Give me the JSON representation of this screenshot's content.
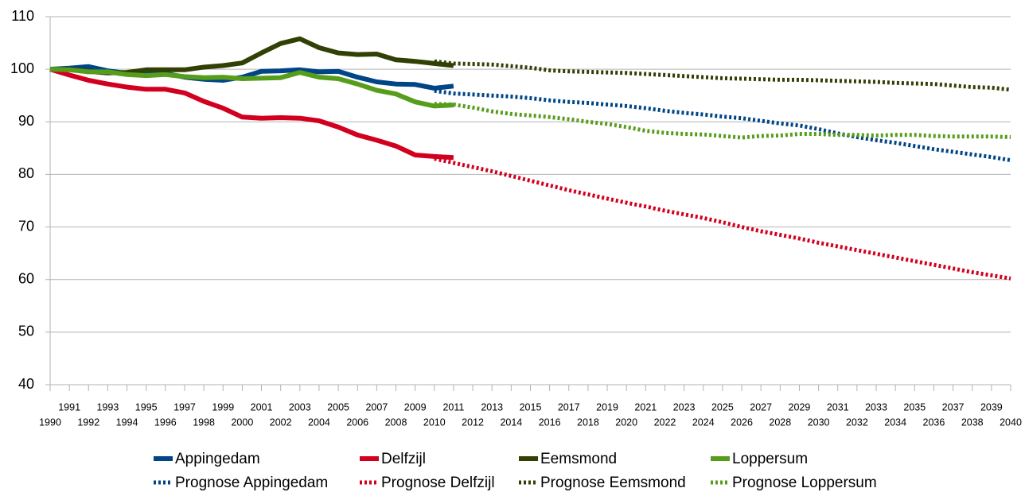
{
  "chart_data": {
    "type": "line",
    "x": [
      1990,
      1991,
      1992,
      1993,
      1994,
      1995,
      1996,
      1997,
      1998,
      1999,
      2000,
      2001,
      2002,
      2003,
      2004,
      2005,
      2006,
      2007,
      2008,
      2009,
      2010,
      2011,
      2012,
      2013,
      2014,
      2015,
      2016,
      2017,
      2018,
      2019,
      2020,
      2021,
      2022,
      2023,
      2024,
      2025,
      2026,
      2027,
      2028,
      2029,
      2030,
      2031,
      2032,
      2033,
      2034,
      2035,
      2036,
      2037,
      2038,
      2039,
      2040
    ],
    "xlim": [
      1990,
      2040
    ],
    "xticks": [
      1990,
      1991,
      1992,
      1993,
      1994,
      1995,
      1996,
      1997,
      1998,
      1999,
      2000,
      2001,
      2002,
      2003,
      2004,
      2005,
      2006,
      2007,
      2008,
      2009,
      2010,
      2011,
      2012,
      2013,
      2014,
      2015,
      2016,
      2017,
      2018,
      2019,
      2020,
      2021,
      2022,
      2023,
      2024,
      2025,
      2026,
      2027,
      2028,
      2029,
      2030,
      2031,
      2032,
      2033,
      2034,
      2035,
      2036,
      2037,
      2038,
      2039,
      2040
    ],
    "ylim": [
      40,
      110
    ],
    "yticks": [
      40,
      50,
      60,
      70,
      80,
      90,
      100,
      110
    ],
    "grid": true,
    "series": [
      {
        "name": "Appingedam",
        "color": "#004586",
        "dashed": false,
        "values": [
          100,
          100.2,
          100.5,
          99.7,
          99.2,
          99.0,
          99.2,
          98.5,
          98.1,
          97.9,
          98.5,
          99.6,
          99.7,
          99.9,
          99.5,
          99.6,
          98.5,
          97.6,
          97.2,
          97.1,
          96.4,
          96.8,
          null,
          null,
          null,
          null,
          null,
          null,
          null,
          null,
          null,
          null,
          null,
          null,
          null,
          null,
          null,
          null,
          null,
          null,
          null,
          null,
          null,
          null,
          null,
          null,
          null,
          null,
          null,
          null,
          null
        ]
      },
      {
        "name": "Delfzijl",
        "color": "#d2001e",
        "dashed": false,
        "values": [
          100,
          98.9,
          97.9,
          97.2,
          96.6,
          96.2,
          96.2,
          95.5,
          93.9,
          92.6,
          90.9,
          90.7,
          90.8,
          90.7,
          90.2,
          89.0,
          87.5,
          86.5,
          85.4,
          83.7,
          83.4,
          83.2,
          null,
          null,
          null,
          null,
          null,
          null,
          null,
          null,
          null,
          null,
          null,
          null,
          null,
          null,
          null,
          null,
          null,
          null,
          null,
          null,
          null,
          null,
          null,
          null,
          null,
          null,
          null,
          null,
          null
        ]
      },
      {
        "name": "Eemsmond",
        "color": "#314004",
        "dashed": false,
        "values": [
          100,
          100,
          99.6,
          99.3,
          99.4,
          99.9,
          99.9,
          99.9,
          100.4,
          100.7,
          101.2,
          103.1,
          104.9,
          105.8,
          104.1,
          103.1,
          102.8,
          102.9,
          101.8,
          101.5,
          101.1,
          100.7,
          null,
          null,
          null,
          null,
          null,
          null,
          null,
          null,
          null,
          null,
          null,
          null,
          null,
          null,
          null,
          null,
          null,
          null,
          null,
          null,
          null,
          null,
          null,
          null,
          null,
          null,
          null,
          null,
          null
        ]
      },
      {
        "name": "Loppersum",
        "color": "#579d1c",
        "dashed": false,
        "values": [
          100,
          99.9,
          99.5,
          99.5,
          99.0,
          98.8,
          99.0,
          98.6,
          98.4,
          98.5,
          98.2,
          98.3,
          98.4,
          99.4,
          98.5,
          98.2,
          97.2,
          96.0,
          95.3,
          93.8,
          93.0,
          93.2,
          null,
          null,
          null,
          null,
          null,
          null,
          null,
          null,
          null,
          null,
          null,
          null,
          null,
          null,
          null,
          null,
          null,
          null,
          null,
          null,
          null,
          null,
          null,
          null,
          null,
          null,
          null,
          null,
          null
        ]
      },
      {
        "name": "Prognose Appingedam",
        "color": "#004586",
        "dashed": true,
        "values": [
          null,
          null,
          null,
          null,
          null,
          null,
          null,
          null,
          null,
          null,
          null,
          null,
          null,
          null,
          null,
          null,
          null,
          null,
          null,
          null,
          95.9,
          95.4,
          95.2,
          95.0,
          94.8,
          94.5,
          94.1,
          93.8,
          93.6,
          93.3,
          93.0,
          92.6,
          92.1,
          91.7,
          91.4,
          91.0,
          90.7,
          90.2,
          89.7,
          89.3,
          88.6,
          87.8,
          87.1,
          86.5,
          86.0,
          85.4,
          84.8,
          84.3,
          83.8,
          83.3,
          82.7
        ]
      },
      {
        "name": "Prognose Delfzijl",
        "color": "#d2001e",
        "dashed": true,
        "values": [
          null,
          null,
          null,
          null,
          null,
          null,
          null,
          null,
          null,
          null,
          null,
          null,
          null,
          null,
          null,
          null,
          null,
          null,
          null,
          null,
          83.0,
          82.2,
          81.4,
          80.6,
          79.7,
          78.8,
          77.9,
          77.0,
          76.2,
          75.4,
          74.6,
          73.9,
          73.1,
          72.4,
          71.7,
          70.9,
          70.0,
          69.2,
          68.5,
          67.8,
          67.0,
          66.3,
          65.6,
          64.9,
          64.2,
          63.5,
          62.8,
          62.1,
          61.4,
          60.8,
          60.2
        ]
      },
      {
        "name": "Prognose Eemsmond",
        "color": "#314004",
        "dashed": true,
        "values": [
          null,
          null,
          null,
          null,
          null,
          null,
          null,
          null,
          null,
          null,
          null,
          null,
          null,
          null,
          null,
          null,
          null,
          null,
          null,
          null,
          101.5,
          101.1,
          101.0,
          100.9,
          100.6,
          100.3,
          99.8,
          99.6,
          99.5,
          99.4,
          99.3,
          99.1,
          98.9,
          98.7,
          98.5,
          98.3,
          98.2,
          98.1,
          98.0,
          98.0,
          97.9,
          97.8,
          97.7,
          97.6,
          97.4,
          97.3,
          97.2,
          96.9,
          96.6,
          96.5,
          96.1
        ]
      },
      {
        "name": "Prognose Loppersum",
        "color": "#579d1c",
        "dashed": true,
        "values": [
          null,
          null,
          null,
          null,
          null,
          null,
          null,
          null,
          null,
          null,
          null,
          null,
          null,
          null,
          null,
          null,
          null,
          null,
          null,
          null,
          93.4,
          93.3,
          92.7,
          92.0,
          91.5,
          91.2,
          90.9,
          90.5,
          90.0,
          89.6,
          89.0,
          88.3,
          87.9,
          87.7,
          87.6,
          87.3,
          87.0,
          87.3,
          87.4,
          87.7,
          87.7,
          87.5,
          87.5,
          87.4,
          87.5,
          87.5,
          87.3,
          87.2,
          87.2,
          87.2,
          87.1
        ]
      }
    ]
  }
}
